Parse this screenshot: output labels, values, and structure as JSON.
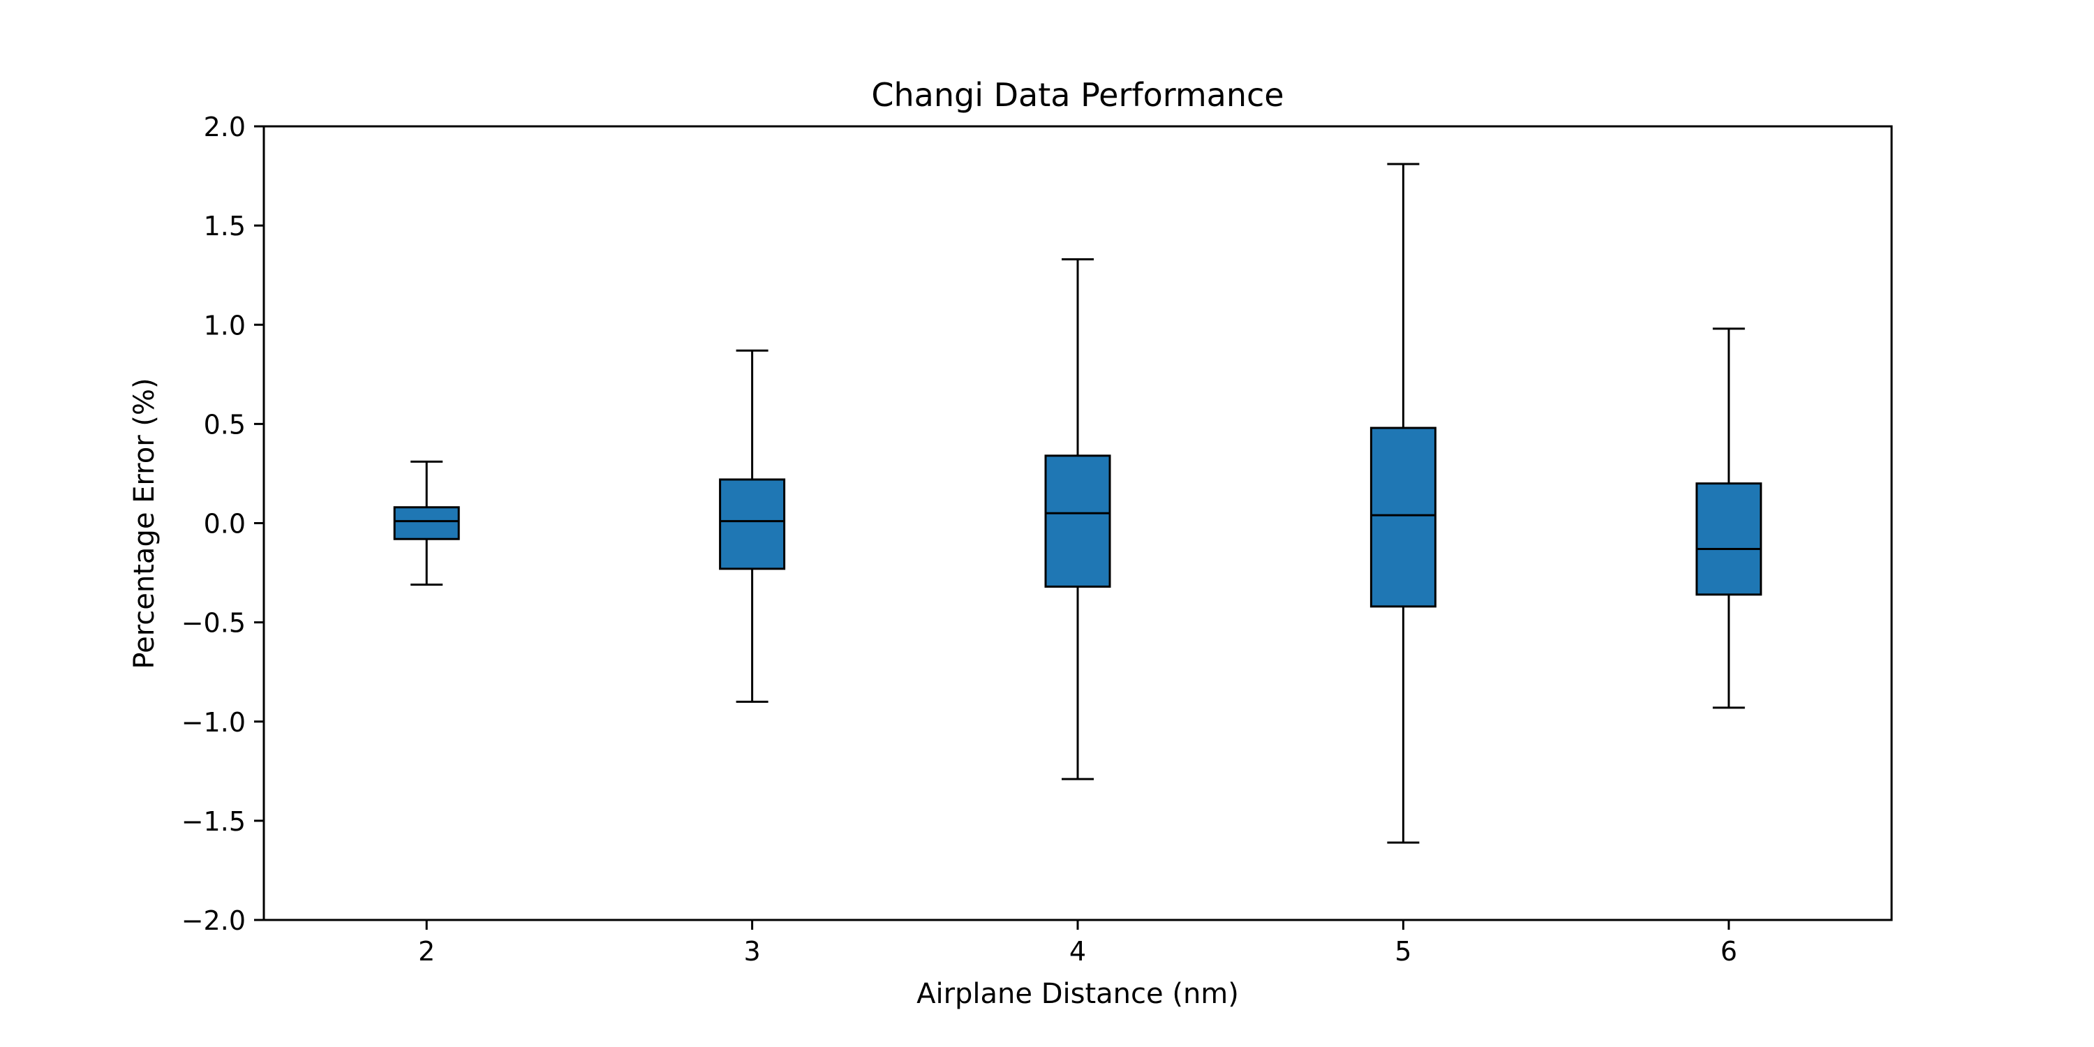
{
  "chart_data": {
    "type": "box",
    "title": "Changi Data Performance",
    "xlabel": "Airplane Distance (nm)",
    "ylabel": "Percentage Error (%)",
    "ylim": [
      -2.0,
      2.0
    ],
    "y_ticks": [
      -2.0,
      -1.5,
      -1.0,
      -0.5,
      0.0,
      0.5,
      1.0,
      1.5,
      2.0
    ],
    "y_tick_labels": [
      "−2.0",
      "−1.5",
      "−1.0",
      "−0.5",
      "0.0",
      "0.5",
      "1.0",
      "1.5",
      "2.0"
    ],
    "categories": [
      "2",
      "3",
      "4",
      "5",
      "6"
    ],
    "boxes": [
      {
        "category": "2",
        "whisker_low": -0.31,
        "q1": -0.08,
        "median": 0.01,
        "q3": 0.08,
        "whisker_high": 0.31
      },
      {
        "category": "3",
        "whisker_low": -0.9,
        "q1": -0.23,
        "median": 0.01,
        "q3": 0.22,
        "whisker_high": 0.87
      },
      {
        "category": "4",
        "whisker_low": -1.29,
        "q1": -0.32,
        "median": 0.05,
        "q3": 0.34,
        "whisker_high": 1.33
      },
      {
        "category": "5",
        "whisker_low": -1.61,
        "q1": -0.42,
        "median": 0.04,
        "q3": 0.48,
        "whisker_high": 1.81
      },
      {
        "category": "6",
        "whisker_low": -0.93,
        "q1": -0.36,
        "median": -0.13,
        "q3": 0.2,
        "whisker_high": 0.98
      }
    ],
    "box_color": "#1f77b4",
    "line_color": "#000000",
    "grid": false,
    "legend": "none"
  }
}
